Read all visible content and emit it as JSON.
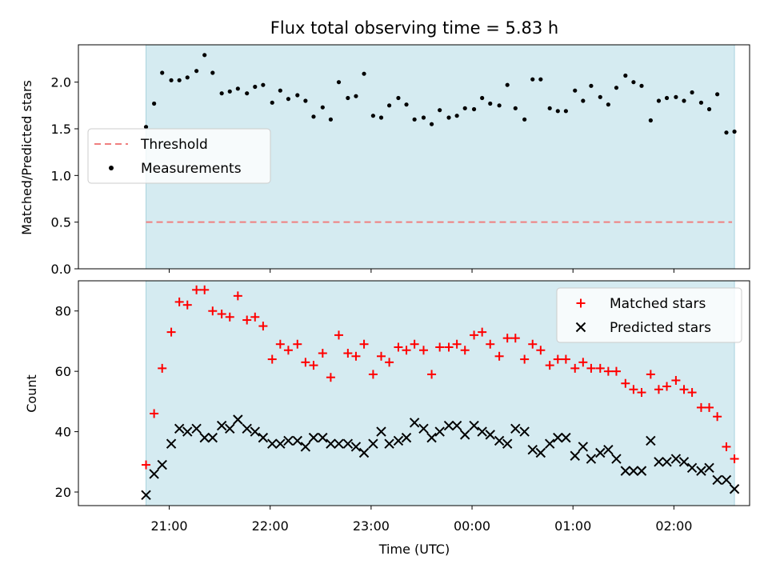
{
  "figure": {
    "title": "Flux total observing time = 5.83 h",
    "xlabel": "Time (UTC)",
    "xticks": [
      "21:00",
      "22:00",
      "23:00",
      "00:00",
      "01:00",
      "02:00"
    ]
  },
  "colors": {
    "band": "#d5ebf1",
    "band_edge": "#a9d3de",
    "threshold": "#f07f7f",
    "measurement": "#000000",
    "matched": "#ff0000",
    "predicted": "#000000"
  },
  "chart_data": [
    {
      "type": "scatter",
      "ylabel": "Matched/Predicted stars",
      "ylim": [
        0,
        2.4
      ],
      "yticks": [
        "0.0",
        "0.5",
        "1.0",
        "1.5",
        "2.0"
      ],
      "observing_window_hours": [
        20.67,
        26.5
      ],
      "legend": {
        "placement": "center-left",
        "entries": [
          "Threshold",
          "Measurements"
        ]
      },
      "threshold": {
        "name": "Threshold",
        "value": 0.5
      },
      "series": [
        {
          "name": "Measurements",
          "x": [
            20.67,
            20.75,
            20.83,
            20.92,
            21.0,
            21.08,
            21.17,
            21.25,
            21.33,
            21.42,
            21.5,
            21.58,
            21.67,
            21.75,
            21.83,
            21.92,
            22.0,
            22.08,
            22.17,
            22.25,
            22.33,
            22.42,
            22.5,
            22.58,
            22.67,
            22.75,
            22.83,
            22.92,
            23.0,
            23.08,
            23.17,
            23.25,
            23.33,
            23.42,
            23.5,
            23.58,
            23.67,
            23.75,
            23.83,
            23.92,
            24.0,
            24.08,
            24.17,
            24.25,
            24.33,
            24.42,
            24.5,
            24.58,
            24.67,
            24.75,
            24.83,
            24.92,
            25.0,
            25.08,
            25.17,
            25.25,
            25.33,
            25.42,
            25.5,
            25.58,
            25.67,
            25.75,
            25.83,
            25.92,
            26.0,
            26.08,
            26.17,
            26.25,
            26.33,
            26.42,
            26.5
          ],
          "y": [
            1.52,
            1.77,
            2.1,
            2.02,
            2.02,
            2.05,
            2.12,
            2.29,
            2.1,
            1.88,
            1.9,
            1.93,
            1.88,
            1.95,
            1.97,
            1.78,
            1.91,
            1.82,
            1.86,
            1.8,
            1.63,
            1.73,
            1.6,
            2.0,
            1.83,
            1.85,
            2.09,
            1.64,
            1.62,
            1.75,
            1.83,
            1.76,
            1.6,
            1.62,
            1.55,
            1.7,
            1.62,
            1.64,
            1.72,
            1.71,
            1.83,
            1.77,
            1.75,
            1.97,
            1.72,
            1.6,
            2.03,
            2.03,
            1.72,
            1.69,
            1.69,
            1.91,
            1.8,
            1.96,
            1.84,
            1.76,
            1.94,
            2.07,
            2.0,
            1.96,
            1.59,
            1.8,
            1.83,
            1.84,
            1.8,
            1.89,
            1.78,
            1.71,
            1.87,
            1.46,
            1.47
          ]
        }
      ]
    },
    {
      "type": "scatter",
      "ylabel": "Count",
      "ylim": [
        15.5,
        90
      ],
      "yticks": [
        "20",
        "40",
        "60",
        "80"
      ],
      "observing_window_hours": [
        20.67,
        26.5
      ],
      "legend": {
        "placement": "top-right",
        "entries": [
          "Matched stars",
          "Predicted stars"
        ]
      },
      "series": [
        {
          "name": "Matched stars",
          "x": [
            20.67,
            20.75,
            20.83,
            20.92,
            21.0,
            21.08,
            21.17,
            21.25,
            21.33,
            21.42,
            21.5,
            21.58,
            21.67,
            21.75,
            21.83,
            21.92,
            22.0,
            22.08,
            22.17,
            22.25,
            22.33,
            22.42,
            22.5,
            22.58,
            22.67,
            22.75,
            22.83,
            22.92,
            23.0,
            23.08,
            23.17,
            23.25,
            23.33,
            23.42,
            23.5,
            23.58,
            23.67,
            23.75,
            23.83,
            23.92,
            24.0,
            24.08,
            24.17,
            24.25,
            24.33,
            24.42,
            24.5,
            24.58,
            24.67,
            24.75,
            24.83,
            24.92,
            25.0,
            25.08,
            25.17,
            25.25,
            25.33,
            25.42,
            25.5,
            25.58,
            25.67,
            25.75,
            25.83,
            25.92,
            26.0,
            26.08,
            26.17,
            26.25,
            26.33,
            26.42,
            26.5
          ],
          "y": [
            29,
            46,
            61,
            73,
            83,
            82,
            87,
            87,
            80,
            79,
            78,
            85,
            77,
            78,
            75,
            64,
            69,
            67,
            69,
            63,
            62,
            66,
            58,
            72,
            66,
            65,
            69,
            59,
            65,
            63,
            68,
            67,
            69,
            67,
            59,
            68,
            68,
            69,
            67,
            72,
            73,
            69,
            65,
            71,
            71,
            64,
            69,
            67,
            62,
            64,
            64,
            61,
            63,
            61,
            61,
            60,
            60,
            56,
            54,
            53,
            59,
            54,
            55,
            57,
            54,
            53,
            48,
            48,
            45,
            35,
            31
          ]
        },
        {
          "name": "Predicted stars",
          "x": [
            20.67,
            20.75,
            20.83,
            20.92,
            21.0,
            21.08,
            21.17,
            21.25,
            21.33,
            21.42,
            21.5,
            21.58,
            21.67,
            21.75,
            21.83,
            21.92,
            22.0,
            22.08,
            22.17,
            22.25,
            22.33,
            22.42,
            22.5,
            22.58,
            22.67,
            22.75,
            22.83,
            22.92,
            23.0,
            23.08,
            23.17,
            23.25,
            23.33,
            23.42,
            23.5,
            23.58,
            23.67,
            23.75,
            23.83,
            23.92,
            24.0,
            24.08,
            24.17,
            24.25,
            24.33,
            24.42,
            24.5,
            24.58,
            24.67,
            24.75,
            24.83,
            24.92,
            25.0,
            25.08,
            25.17,
            25.25,
            25.33,
            25.42,
            25.5,
            25.58,
            25.67,
            25.75,
            25.83,
            25.92,
            26.0,
            26.08,
            26.17,
            26.25,
            26.33,
            26.42,
            26.5
          ],
          "y": [
            19,
            26,
            29,
            36,
            41,
            40,
            41,
            38,
            38,
            42,
            41,
            44,
            41,
            40,
            38,
            36,
            36,
            37,
            37,
            35,
            38,
            38,
            36,
            36,
            36,
            35,
            33,
            36,
            40,
            36,
            37,
            38,
            43,
            41,
            38,
            40,
            42,
            42,
            39,
            42,
            40,
            39,
            37,
            36,
            41,
            40,
            34,
            33,
            36,
            38,
            38,
            32,
            35,
            31,
            33,
            34,
            31,
            27,
            27,
            27,
            37,
            30,
            30,
            31,
            30,
            28,
            27,
            28,
            24,
            24,
            21
          ]
        }
      ]
    }
  ]
}
